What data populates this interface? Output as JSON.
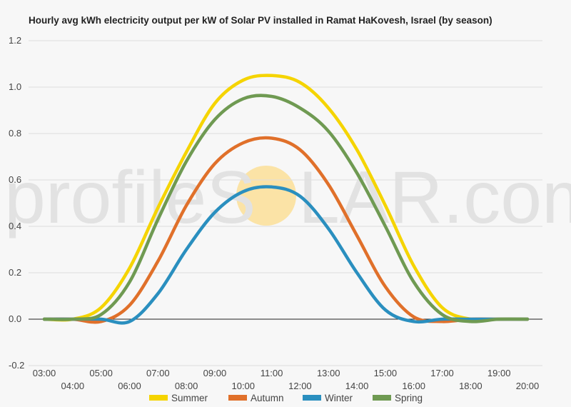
{
  "watermark": {
    "text_left": "profileS",
    "text_right": "LAR.com",
    "sun_color": "#fbe3a6"
  },
  "chart_data": {
    "type": "line",
    "title": "Hourly avg kWh electricity output per kW of Solar PV installed in Ramat HaKovesh, Israel (by season)",
    "xlabel": "",
    "ylabel": "",
    "x": [
      "03:00",
      "04:00",
      "05:00",
      "06:00",
      "07:00",
      "08:00",
      "09:00",
      "10:00",
      "11:00",
      "12:00",
      "13:00",
      "14:00",
      "15:00",
      "16:00",
      "17:00",
      "18:00",
      "19:00",
      "20:00"
    ],
    "x_tick_labels": [
      "03:00",
      "04:00",
      "05:00",
      "06:00",
      "07:00",
      "08:00",
      "09:00",
      "10:00",
      "11:00",
      "12:00",
      "13:00",
      "14:00",
      "15:00",
      "16:00",
      "17:00",
      "18:00",
      "19:00",
      "20:00"
    ],
    "ylim": [
      -0.2,
      1.2
    ],
    "y_ticks": [
      -0.2,
      0.0,
      0.2,
      0.4,
      0.6,
      0.8,
      1.0,
      1.2
    ],
    "y_tick_labels": [
      "-0.2",
      "0.0",
      "0.2",
      "0.4",
      "0.6",
      "0.8",
      "1.0",
      "1.2"
    ],
    "grid": true,
    "legend_position": "bottom",
    "series": [
      {
        "name": "Summer",
        "color": "#f5d400",
        "values": [
          0.0,
          0.0,
          0.05,
          0.22,
          0.48,
          0.72,
          0.93,
          1.03,
          1.05,
          1.02,
          0.91,
          0.73,
          0.49,
          0.23,
          0.05,
          0.0,
          0.0,
          0.0
        ]
      },
      {
        "name": "Autumn",
        "color": "#e0702a",
        "values": [
          0.0,
          0.0,
          -0.01,
          0.06,
          0.25,
          0.49,
          0.67,
          0.76,
          0.78,
          0.73,
          0.58,
          0.36,
          0.14,
          0.01,
          -0.01,
          0.0,
          0.0,
          0.0
        ]
      },
      {
        "name": "Winter",
        "color": "#2a8fbf",
        "values": [
          0.0,
          0.0,
          0.0,
          -0.01,
          0.11,
          0.3,
          0.46,
          0.55,
          0.57,
          0.53,
          0.39,
          0.2,
          0.04,
          -0.01,
          0.0,
          0.0,
          0.0,
          0.0
        ]
      },
      {
        "name": "Spring",
        "color": "#6f9a52",
        "values": [
          0.0,
          0.0,
          0.02,
          0.16,
          0.43,
          0.68,
          0.86,
          0.95,
          0.96,
          0.91,
          0.81,
          0.63,
          0.4,
          0.16,
          0.02,
          -0.01,
          0.0,
          0.0
        ]
      }
    ]
  }
}
